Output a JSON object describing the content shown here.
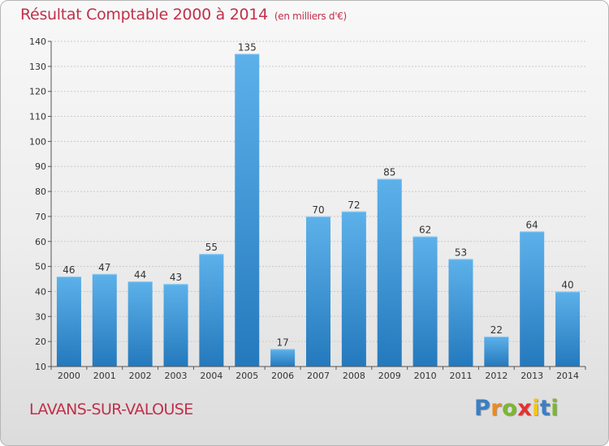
{
  "header": {
    "title": "Résultat Comptable 2000 à 2014",
    "unit": "(en milliers d'€)"
  },
  "footer": {
    "town": "LAVANS-SUR-VALOUSE",
    "logo": [
      "P",
      "r",
      "o",
      "x",
      "i",
      "t",
      "i"
    ]
  },
  "colors": {
    "title": "#c0304a",
    "bar_top": "#5db1ea",
    "bar_bottom": "#2479bd",
    "logo": [
      "#3a7fc4",
      "#f08a1c",
      "#7cb82f",
      "#e5312f",
      "#f5c518",
      "#3a7fc4",
      "#7cb82f"
    ]
  },
  "chart_data": {
    "type": "bar",
    "title": "Résultat Comptable 2000 à 2014",
    "categories": [
      "2000",
      "2001",
      "2002",
      "2003",
      "2004",
      "2005",
      "2006",
      "2007",
      "2008",
      "2009",
      "2010",
      "2011",
      "2012",
      "2013",
      "2014"
    ],
    "values": [
      46,
      47,
      44,
      43,
      55,
      135,
      17,
      70,
      72,
      85,
      62,
      53,
      22,
      64,
      40
    ],
    "data_labels": [
      "46",
      "47",
      "44",
      "43",
      "55",
      "135",
      "17",
      "70",
      "72",
      "85",
      "62",
      "53",
      "22",
      "64",
      "40"
    ],
    "yticks": [
      10,
      20,
      30,
      40,
      50,
      60,
      70,
      80,
      90,
      100,
      110,
      120,
      130,
      140
    ],
    "ylim": [
      10,
      140
    ],
    "xlabel": "",
    "ylabel": "",
    "grid": true
  }
}
